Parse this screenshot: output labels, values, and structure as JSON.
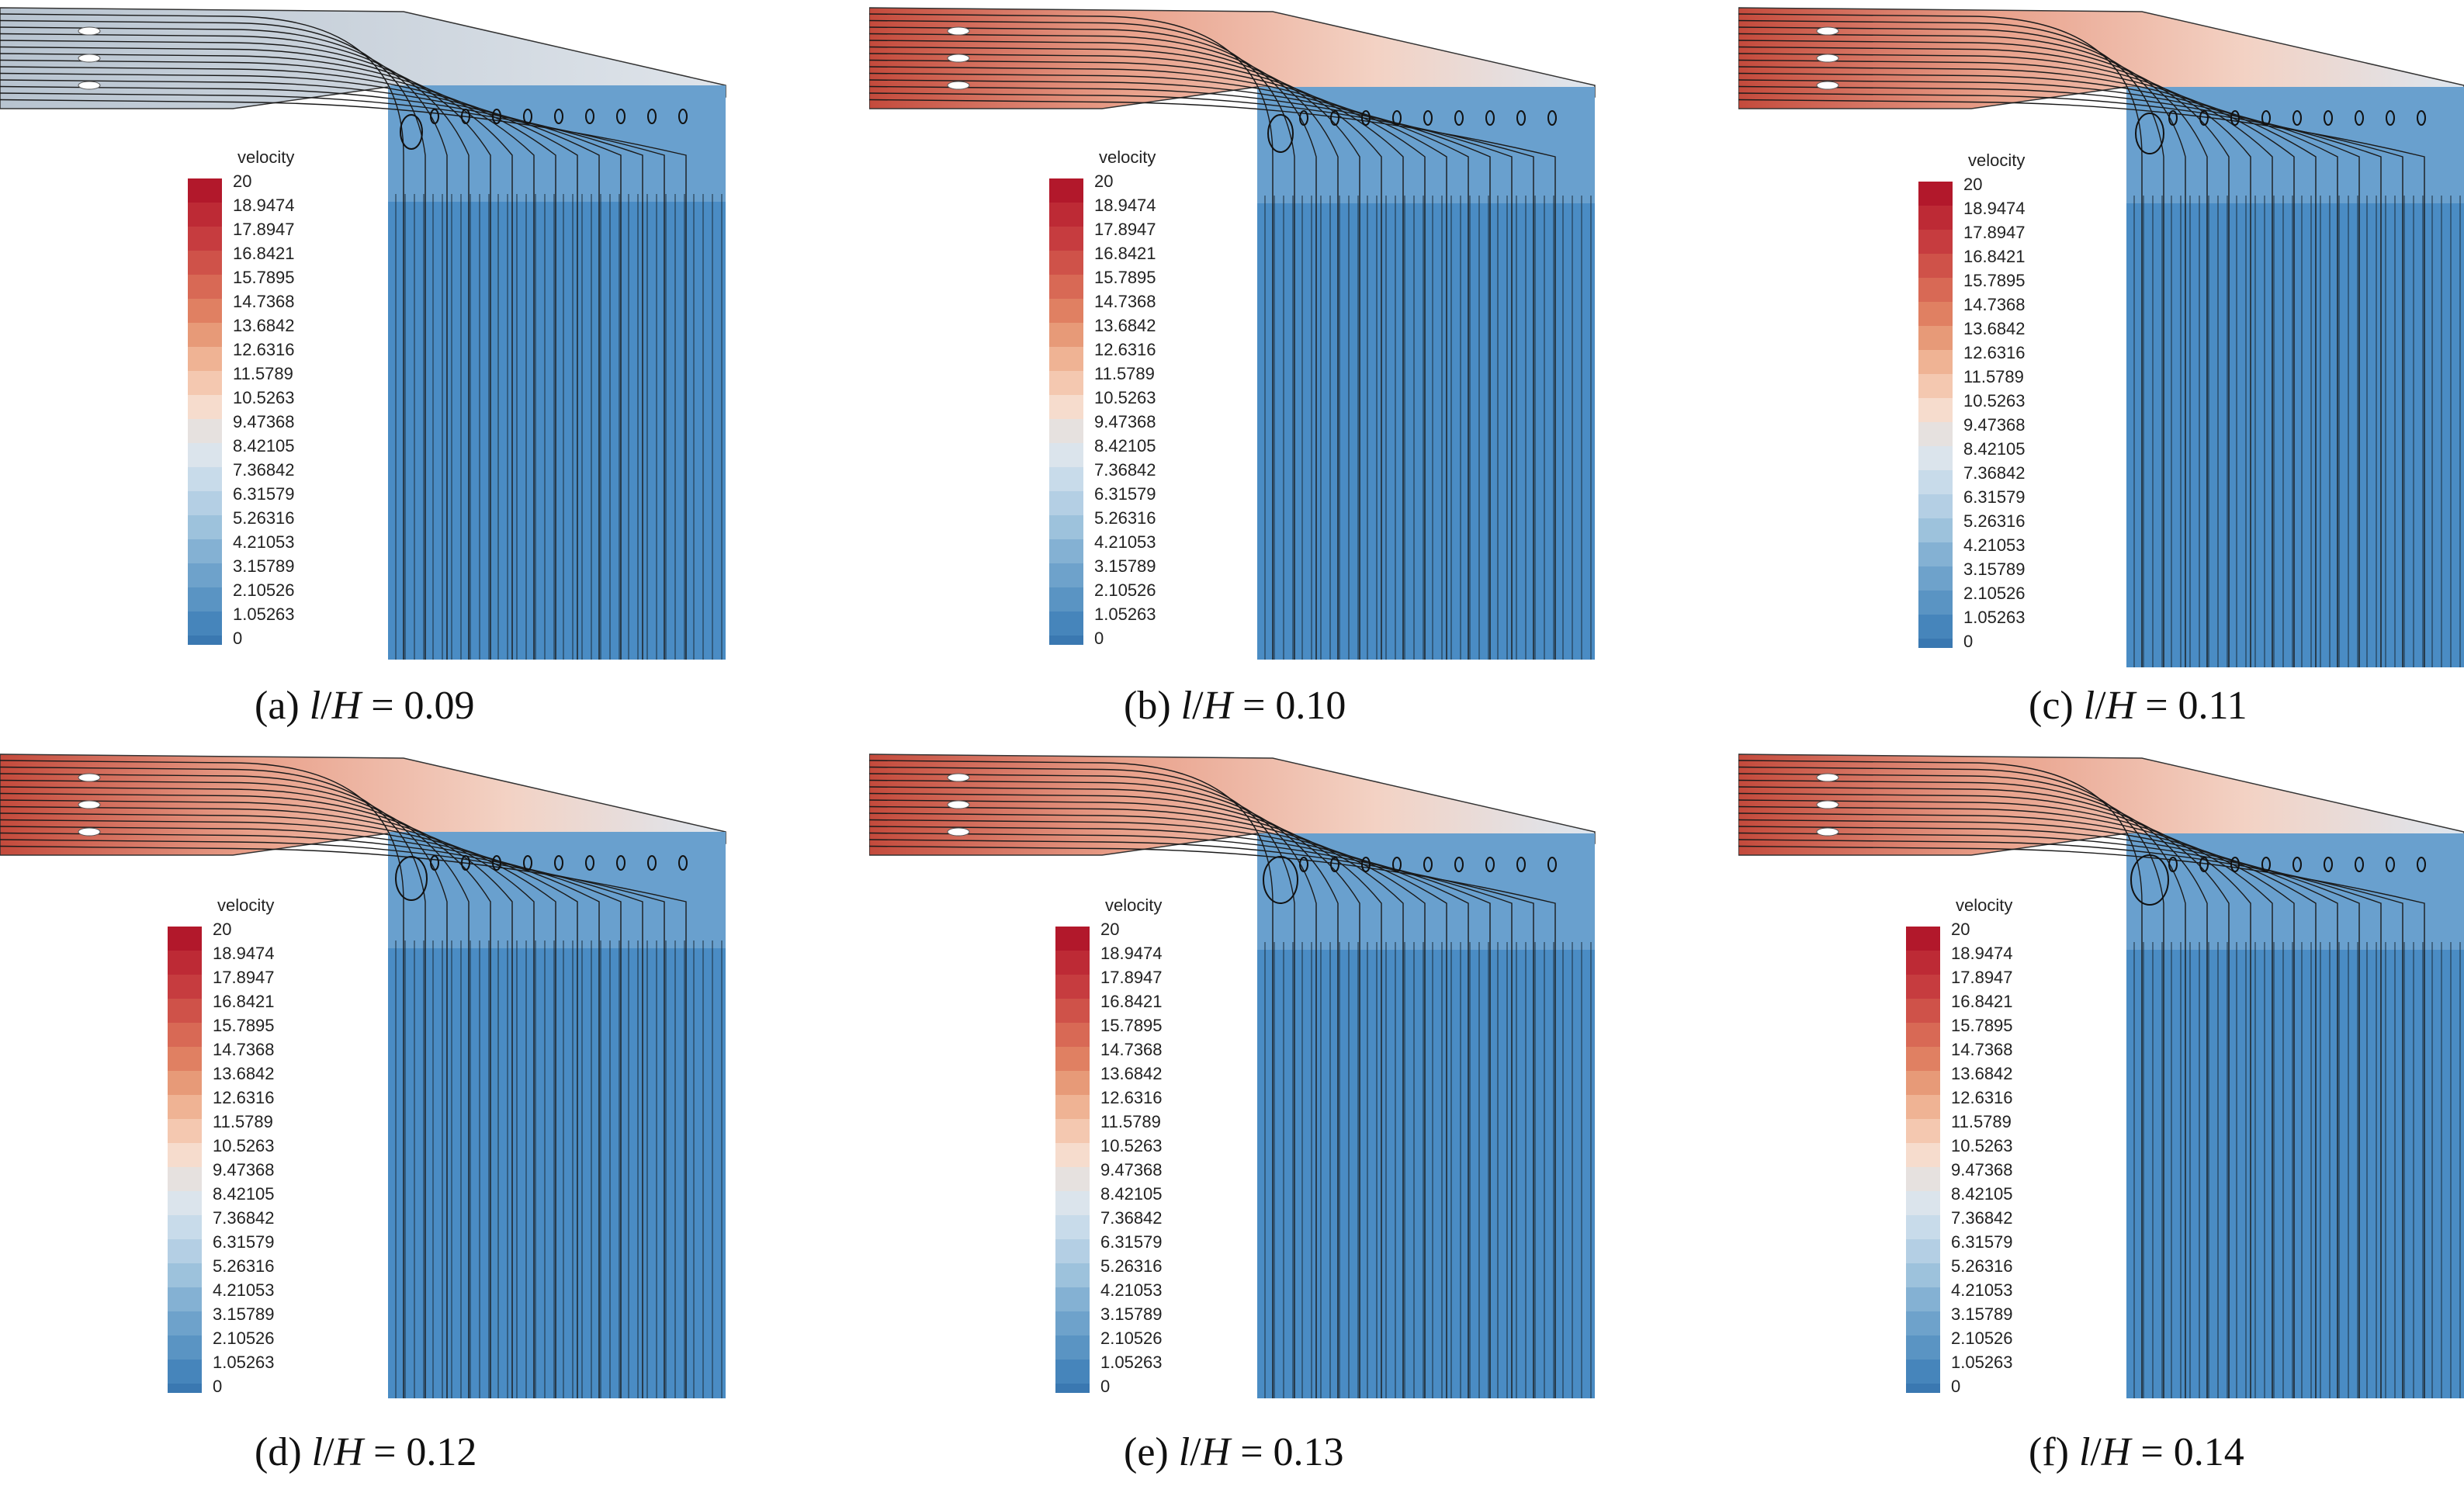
{
  "legend": {
    "title": "velocity",
    "ticks": [
      "20",
      "18.9474",
      "17.8947",
      "16.8421",
      "15.7895",
      "14.7368",
      "13.6842",
      "12.6316",
      "11.5789",
      "10.5263",
      "9.47368",
      "8.42105",
      "7.36842",
      "6.31579",
      "5.26316",
      "4.21053",
      "3.15789",
      "2.10526",
      "1.05263",
      "0"
    ],
    "colors": [
      "#b2182b",
      "#bd2a35",
      "#c63c3f",
      "#cf5249",
      "#d86955",
      "#e08062",
      "#e79a78",
      "#efb394",
      "#f4c8b0",
      "#f6dccd",
      "#e6e1df",
      "#dbe4ec",
      "#c8dbea",
      "#b4cfe4",
      "#9dc2dc",
      "#84b1d3",
      "#6ea2cb",
      "#5a94c3",
      "#4685bb",
      "#3a78b1"
    ],
    "flow_blue": "#4a8cc4",
    "hot_red": "#c44a3c"
  },
  "panels": [
    {
      "id": "a",
      "label_prefix": "(a) ",
      "var_l": "l",
      "slash": "/",
      "var_h": "H",
      "value_text": " = 0.09"
    },
    {
      "id": "b",
      "label_prefix": "(b) ",
      "var_l": "l",
      "slash": "/",
      "var_h": "H",
      "value_text": " = 0.10"
    },
    {
      "id": "c",
      "label_prefix": "(c) ",
      "var_l": "l",
      "slash": "/",
      "var_h": "H",
      "value_text": " = 0.11"
    },
    {
      "id": "d",
      "label_prefix": "(d) ",
      "var_l": "l",
      "slash": "/",
      "var_h": "H",
      "value_text": " = 0.12"
    },
    {
      "id": "e",
      "label_prefix": "(e) ",
      "var_l": "l",
      "slash": "/",
      "var_h": "H",
      "value_text": " = 0.13"
    },
    {
      "id": "f",
      "label_prefix": "(f) ",
      "var_l": "l",
      "slash": "/",
      "var_h": "H",
      "value_text": " = 0.14"
    }
  ]
}
